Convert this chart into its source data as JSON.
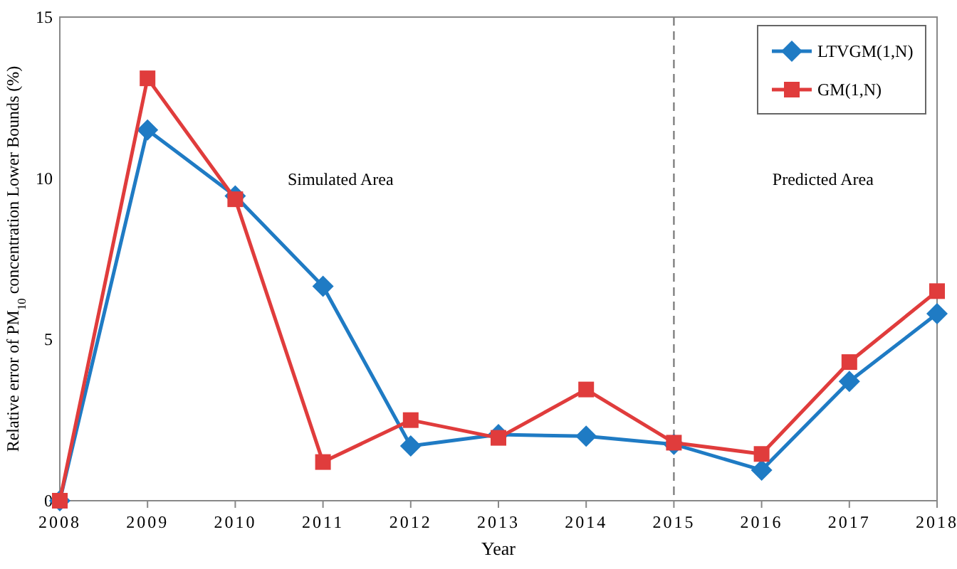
{
  "chart_data": {
    "type": "line",
    "xlabel": "Year",
    "ylabel": "Relative error of PM$_{10}$ concentration Lower Bounds (%)",
    "x": [
      2008,
      2009,
      2010,
      2011,
      2012,
      2013,
      2014,
      2015,
      2016,
      2017,
      2018
    ],
    "xlim": [
      2008,
      2018
    ],
    "xticks": [
      2008,
      2009,
      2010,
      2011,
      2012,
      2013,
      2014,
      2015,
      2016,
      2017,
      2018
    ],
    "ylim": [
      0,
      15
    ],
    "yticks": [
      0,
      5,
      10,
      15
    ],
    "grid": false,
    "legend": "top right",
    "line_style": "solid",
    "series": [
      {
        "name": "LTVGM(1,N)",
        "color": "#1f7bc4",
        "marker": "diamond",
        "values": [
          0,
          11.5,
          9.45,
          6.65,
          1.7,
          2.05,
          2.0,
          1.75,
          0.95,
          3.7,
          5.8
        ]
      },
      {
        "name": "GM(1,N)",
        "color": "#e03c3c",
        "marker": "square",
        "values": [
          0,
          13.1,
          9.35,
          1.2,
          2.5,
          1.95,
          3.45,
          1.8,
          1.45,
          4.3,
          6.5
        ]
      }
    ],
    "ref_lines": [
      {
        "axis": "x",
        "value": 2015,
        "color": "#808080",
        "line_style": "dashed"
      }
    ],
    "annotations": [
      "Simulated Area",
      "Predicted Area"
    ]
  }
}
